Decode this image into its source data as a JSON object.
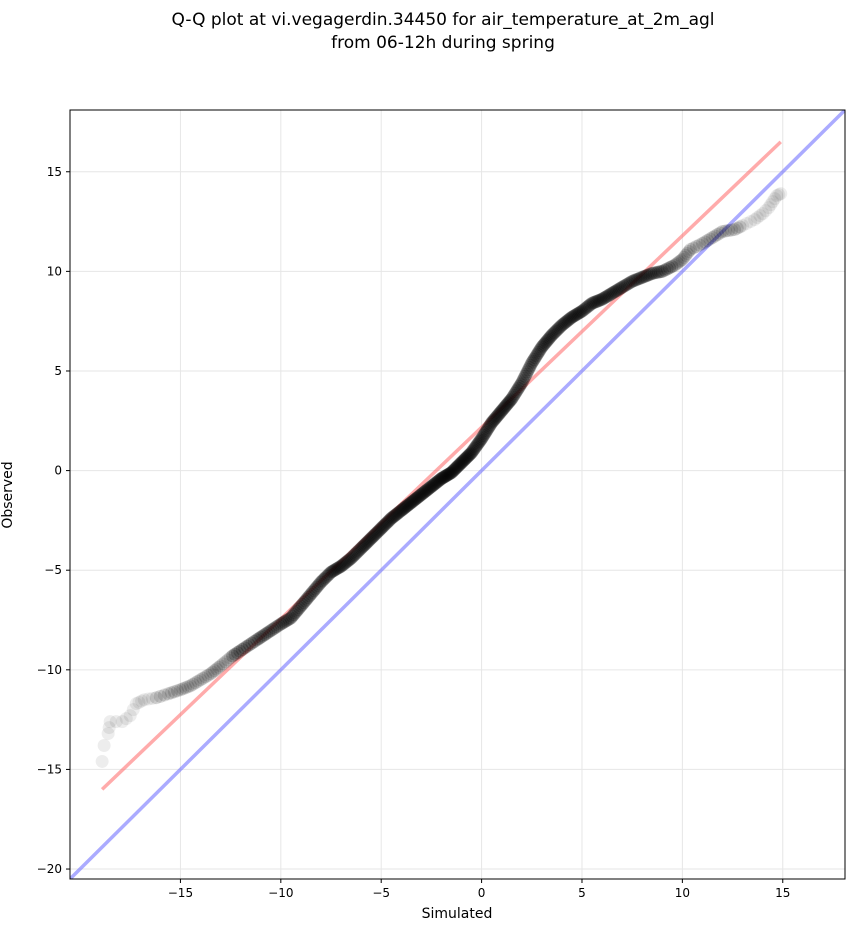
{
  "chart_data": {
    "type": "scatter",
    "title_line1": "Q-Q plot at vi.vegagerdin.34450 for air_temperature_at_2m_agl",
    "title_line2": "from 06-12h during spring",
    "xlabel": "Simulated",
    "ylabel": "Observed",
    "xlim": [
      -20.5,
      18.1
    ],
    "ylim": [
      -20.5,
      18.1
    ],
    "xticks": [
      -15,
      -10,
      -5,
      0,
      5,
      10,
      15
    ],
    "yticks": [
      -20,
      -15,
      -10,
      -5,
      0,
      5,
      10,
      15
    ],
    "xtick_labels": [
      "−15",
      "−10",
      "−5",
      "0",
      "5",
      "10",
      "15"
    ],
    "ytick_labels": [
      "−20",
      "−15",
      "−10",
      "−5",
      "0",
      "5",
      "10",
      "15"
    ],
    "grid": true,
    "colors": {
      "points": "#000000",
      "fit_line": "#ff6666",
      "identity_line": "#6666ff",
      "grid": "#e6e6e6"
    },
    "quantile_curve": [
      [
        -18.9,
        -14.6
      ],
      [
        -18.8,
        -13.8
      ],
      [
        -18.6,
        -13.2
      ],
      [
        -18.5,
        -12.6
      ],
      [
        -17.9,
        -12.6
      ],
      [
        -17.5,
        -12.3
      ],
      [
        -17.2,
        -11.7
      ],
      [
        -16.8,
        -11.5
      ],
      [
        -16.2,
        -11.4
      ],
      [
        -15.6,
        -11.2
      ],
      [
        -15.0,
        -11.0
      ],
      [
        -14.5,
        -10.8
      ],
      [
        -14.0,
        -10.5
      ],
      [
        -13.5,
        -10.2
      ],
      [
        -13.0,
        -9.8
      ],
      [
        -12.4,
        -9.3
      ],
      [
        -11.8,
        -8.9
      ],
      [
        -11.2,
        -8.5
      ],
      [
        -10.6,
        -8.1
      ],
      [
        -10.0,
        -7.7
      ],
      [
        -9.5,
        -7.4
      ],
      [
        -9.0,
        -6.8
      ],
      [
        -8.5,
        -6.2
      ],
      [
        -8.0,
        -5.6
      ],
      [
        -7.5,
        -5.1
      ],
      [
        -7.0,
        -4.8
      ],
      [
        -6.5,
        -4.4
      ],
      [
        -6.0,
        -3.9
      ],
      [
        -5.5,
        -3.4
      ],
      [
        -5.0,
        -2.9
      ],
      [
        -4.5,
        -2.4
      ],
      [
        -4.0,
        -2.0
      ],
      [
        -3.5,
        -1.6
      ],
      [
        -3.0,
        -1.2
      ],
      [
        -2.5,
        -0.8
      ],
      [
        -2.0,
        -0.4
      ],
      [
        -1.5,
        -0.1
      ],
      [
        -1.0,
        0.4
      ],
      [
        -0.5,
        0.9
      ],
      [
        0.0,
        1.6
      ],
      [
        0.5,
        2.4
      ],
      [
        1.0,
        3.0
      ],
      [
        1.5,
        3.6
      ],
      [
        2.0,
        4.4
      ],
      [
        2.5,
        5.4
      ],
      [
        3.0,
        6.2
      ],
      [
        3.5,
        6.8
      ],
      [
        4.0,
        7.3
      ],
      [
        4.5,
        7.7
      ],
      [
        5.0,
        8.0
      ],
      [
        5.5,
        8.4
      ],
      [
        6.0,
        8.6
      ],
      [
        6.5,
        8.9
      ],
      [
        7.0,
        9.2
      ],
      [
        7.5,
        9.5
      ],
      [
        8.0,
        9.7
      ],
      [
        8.5,
        9.9
      ],
      [
        9.0,
        10.0
      ],
      [
        9.6,
        10.3
      ],
      [
        10.0,
        10.6
      ],
      [
        10.4,
        11.1
      ],
      [
        11.0,
        11.4
      ],
      [
        11.5,
        11.7
      ],
      [
        12.0,
        12.0
      ],
      [
        12.6,
        12.1
      ],
      [
        13.0,
        12.3
      ],
      [
        13.6,
        12.6
      ],
      [
        14.0,
        12.9
      ],
      [
        14.3,
        13.2
      ],
      [
        14.5,
        13.5
      ],
      [
        14.7,
        13.8
      ],
      [
        14.9,
        13.9
      ]
    ],
    "fit_line": [
      [
        -18.9,
        -16.0
      ],
      [
        14.9,
        16.5
      ]
    ],
    "identity_line": [
      [
        -20.5,
        -20.5
      ],
      [
        18.1,
        18.1
      ]
    ]
  }
}
